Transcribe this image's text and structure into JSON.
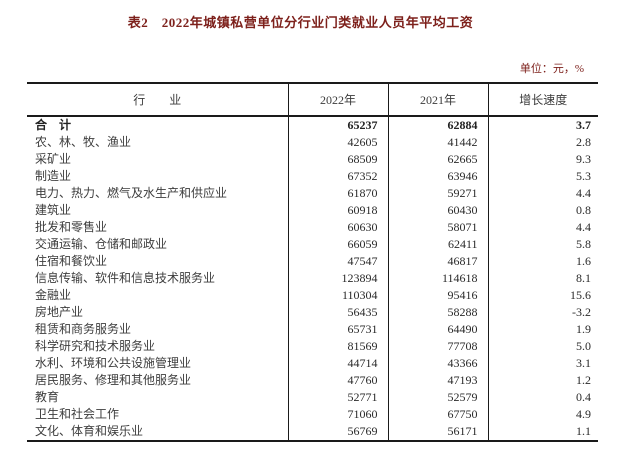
{
  "title": "表2　2022年城镇私营单位分行业门类就业人员年平均工资",
  "unit_note": "单位：元，%",
  "colors": {
    "heading_text": "#7d201b",
    "body_text": "#3d3d3d",
    "border": "#1a1a1a",
    "background": "#ffffff"
  },
  "table": {
    "columns": [
      "行　　业",
      "2022年",
      "2021年",
      "增长速度"
    ],
    "rows": [
      {
        "label": "合　计",
        "y2022": "65237",
        "y2021": "62884",
        "growth": "3.7",
        "bold": true
      },
      {
        "label": "农、林、牧、渔业",
        "y2022": "42605",
        "y2021": "41442",
        "growth": "2.8"
      },
      {
        "label": "采矿业",
        "y2022": "68509",
        "y2021": "62665",
        "growth": "9.3"
      },
      {
        "label": "制造业",
        "y2022": "67352",
        "y2021": "63946",
        "growth": "5.3"
      },
      {
        "label": "电力、热力、燃气及水生产和供应业",
        "y2022": "61870",
        "y2021": "59271",
        "growth": "4.4"
      },
      {
        "label": "建筑业",
        "y2022": "60918",
        "y2021": "60430",
        "growth": "0.8"
      },
      {
        "label": "批发和零售业",
        "y2022": "60630",
        "y2021": "58071",
        "growth": "4.4"
      },
      {
        "label": "交通运输、仓储和邮政业",
        "y2022": "66059",
        "y2021": "62411",
        "growth": "5.8"
      },
      {
        "label": "住宿和餐饮业",
        "y2022": "47547",
        "y2021": "46817",
        "growth": "1.6"
      },
      {
        "label": "信息传输、软件和信息技术服务业",
        "y2022": "123894",
        "y2021": "114618",
        "growth": "8.1"
      },
      {
        "label": "金融业",
        "y2022": "110304",
        "y2021": "95416",
        "growth": "15.6"
      },
      {
        "label": "房地产业",
        "y2022": "56435",
        "y2021": "58288",
        "growth": "-3.2"
      },
      {
        "label": "租赁和商务服务业",
        "y2022": "65731",
        "y2021": "64490",
        "growth": "1.9"
      },
      {
        "label": "科学研究和技术服务业",
        "y2022": "81569",
        "y2021": "77708",
        "growth": "5.0"
      },
      {
        "label": "水利、环境和公共设施管理业",
        "y2022": "44714",
        "y2021": "43366",
        "growth": "3.1"
      },
      {
        "label": "居民服务、修理和其他服务业",
        "y2022": "47760",
        "y2021": "47193",
        "growth": "1.2"
      },
      {
        "label": "教育",
        "y2022": "52771",
        "y2021": "52579",
        "growth": "0.4"
      },
      {
        "label": "卫生和社会工作",
        "y2022": "71060",
        "y2021": "67750",
        "growth": "4.9"
      },
      {
        "label": "文化、体育和娱乐业",
        "y2022": "56769",
        "y2021": "56171",
        "growth": "1.1"
      }
    ]
  }
}
